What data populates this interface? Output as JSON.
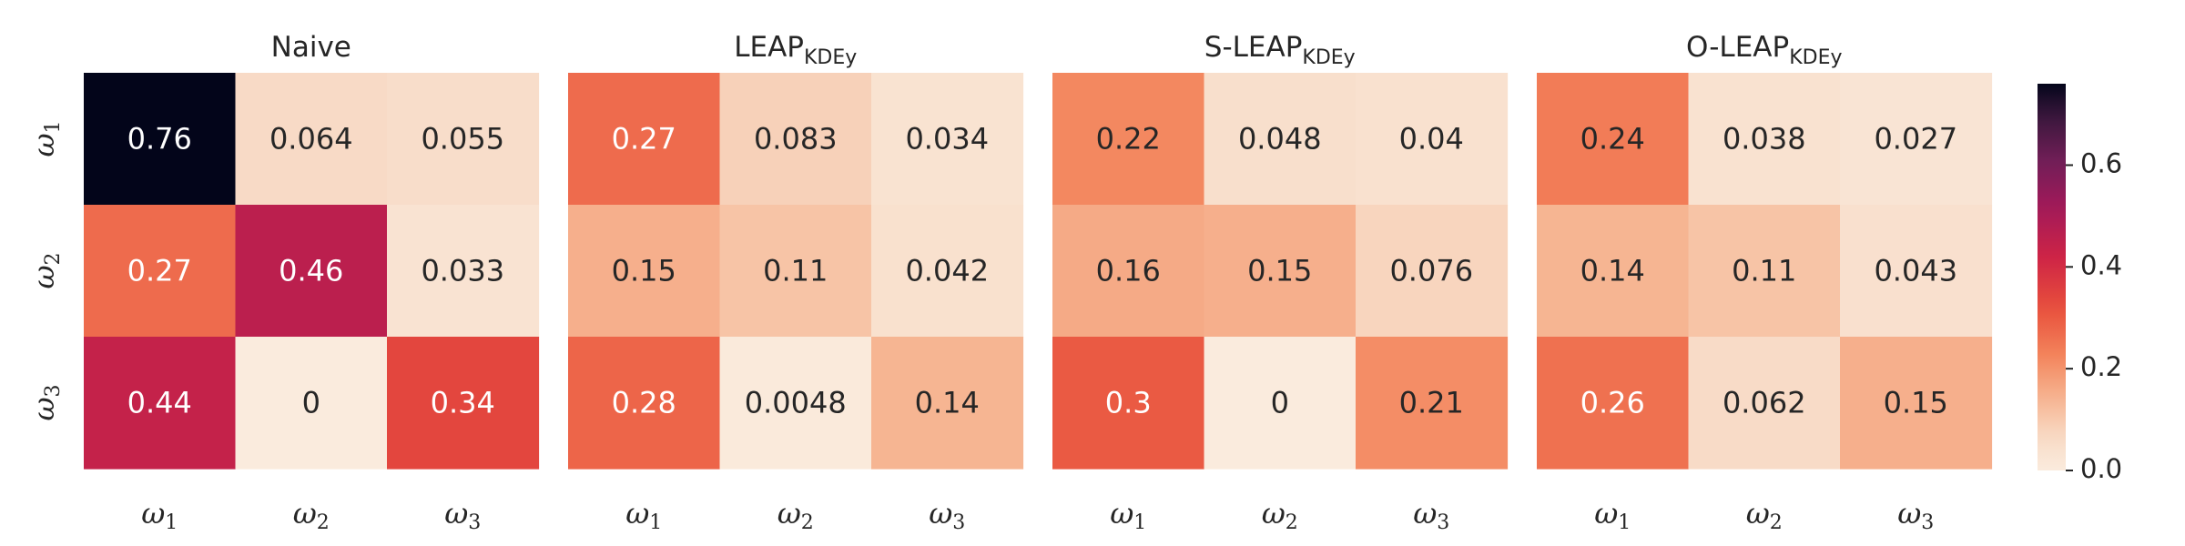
{
  "chart_data": {
    "type": "heatmap",
    "row_labels": [
      "1",
      "2",
      "3"
    ],
    "col_labels": [
      "1",
      "2",
      "3"
    ],
    "tick_symbol": "ω",
    "vmin": 0,
    "vmax": 0.76,
    "colormap": "rocket_r",
    "panels": [
      {
        "title": "Naive",
        "title_sub": "",
        "values": [
          [
            0.76,
            0.064,
            0.055
          ],
          [
            0.27,
            0.46,
            0.033
          ],
          [
            0.44,
            0,
            0.34
          ]
        ],
        "labels": [
          [
            "0.76",
            "0.064",
            "0.055"
          ],
          [
            "0.27",
            "0.46",
            "0.033"
          ],
          [
            "0.44",
            "0",
            "0.34"
          ]
        ]
      },
      {
        "title": "LEAP",
        "title_sub": "KDEy",
        "values": [
          [
            0.27,
            0.083,
            0.034
          ],
          [
            0.15,
            0.11,
            0.042
          ],
          [
            0.28,
            0.0048,
            0.14
          ]
        ],
        "labels": [
          [
            "0.27",
            "0.083",
            "0.034"
          ],
          [
            "0.15",
            "0.11",
            "0.042"
          ],
          [
            "0.28",
            "0.0048",
            "0.14"
          ]
        ]
      },
      {
        "title": "S-LEAP",
        "title_sub": "KDEy",
        "values": [
          [
            0.22,
            0.048,
            0.04
          ],
          [
            0.16,
            0.15,
            0.076
          ],
          [
            0.3,
            0,
            0.21
          ]
        ],
        "labels": [
          [
            "0.22",
            "0.048",
            "0.04"
          ],
          [
            "0.16",
            "0.15",
            "0.076"
          ],
          [
            "0.3",
            "0",
            "0.21"
          ]
        ]
      },
      {
        "title": "O-LEAP",
        "title_sub": "KDEy",
        "values": [
          [
            0.24,
            0.038,
            0.027
          ],
          [
            0.14,
            0.11,
            0.043
          ],
          [
            0.26,
            0.062,
            0.15
          ]
        ],
        "labels": [
          [
            "0.24",
            "0.038",
            "0.027"
          ],
          [
            "0.14",
            "0.11",
            "0.043"
          ],
          [
            "0.26",
            "0.062",
            "0.15"
          ]
        ]
      }
    ],
    "colorbar": {
      "ticks": [
        0.0,
        0.2,
        0.4,
        0.6
      ],
      "tick_labels": [
        "0.0",
        "0.2",
        "0.4",
        "0.6"
      ]
    },
    "text_colors": {
      "dark": "#262626",
      "light": "#ffffff"
    }
  }
}
